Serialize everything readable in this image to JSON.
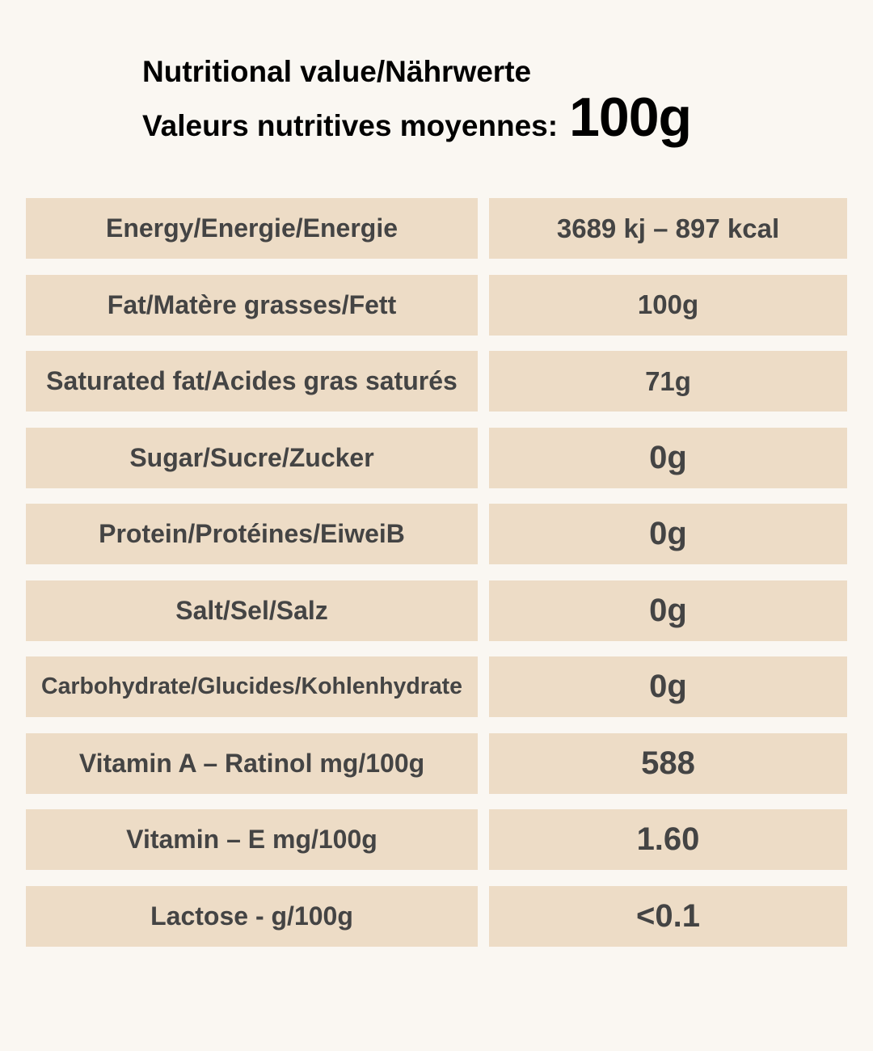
{
  "header": {
    "title_line1": "Nutritional value/Nährwerte",
    "title_line2": "Valeurs nutritives moyennes:",
    "amount": "100g"
  },
  "rows": [
    {
      "name": "Energy/Energie/Energie",
      "value": "3689 kj – 897 kcal"
    },
    {
      "name": "Fat/Matère grasses/Fett",
      "value": "100g"
    },
    {
      "name": "Saturated fat/Acides gras saturés",
      "value": "71g"
    },
    {
      "name": "Sugar/Sucre/Zucker",
      "value": "0g"
    },
    {
      "name": "Protein/Protéines/EiweiB",
      "value": "0g"
    },
    {
      "name": "Salt/Sel/Salz",
      "value": "0g"
    },
    {
      "name": "Carbohydrate/Glucides/Kohlenhydrate",
      "value": "0g"
    },
    {
      "name": "Vitamin A – Ratinol mg/100g",
      "value": "588"
    },
    {
      "name": "Vitamin – E mg/100g",
      "value": "1.60"
    },
    {
      "name": "Lactose - g/100g",
      "value": "<0.1"
    }
  ],
  "colors": {
    "background": "#faf7f2",
    "cell": "#eddcc6",
    "text": "#444444",
    "heading": "#000000"
  }
}
